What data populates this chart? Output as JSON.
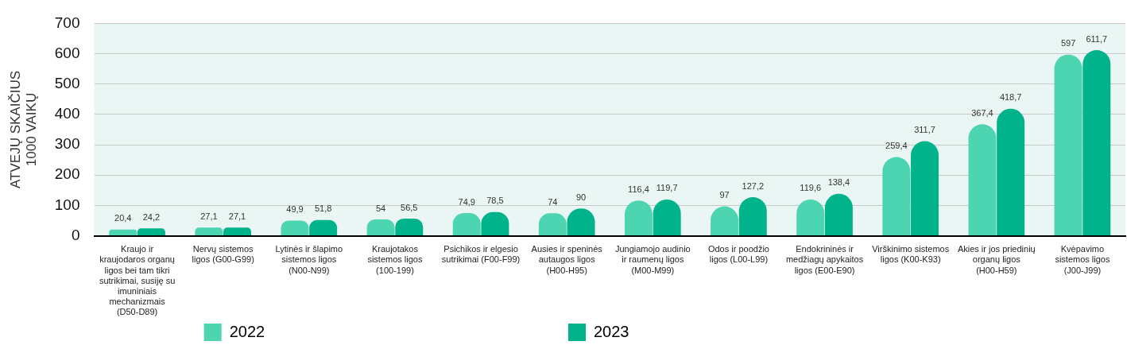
{
  "chart_data": {
    "type": "bar",
    "ylabel": "ATVEJŲ SKAIČIUS 1000 VAIKŲ",
    "categories": [
      "Kraujo ir kraujodaros organų ligos bei tam tikri sutrikimai, susiję su imuniniais mechanizmais (D50-D89)",
      "Nervų sistemos ligos (G00-G99)",
      "Lytinės ir šlapimo sistemos ligos (N00-N99)",
      "Kraujotakos sistemos ligos (100-199)",
      "Psichikos ir elgesio sutrikimai (F00-F99)",
      "Ausies ir speninės autaugos ligos (H00-H95)",
      "Jungiamojo audinio ir raumenų ligos (M00-M99)",
      "Odos ir poodžio ligos (L00-L99)",
      "Endokrininės ir medžiagų apykaitos ligos (E00-E90)",
      "Virškinimo sistemos ligos (K00-K93)",
      "Akies ir jos priedinių organų ligos (H00-H59)",
      "Kvėpavimo sistemos ligos (J00-J99)"
    ],
    "series": [
      {
        "name": "2022",
        "color": "#4dd4b0",
        "values": [
          20.4,
          27.1,
          49.9,
          54,
          74.9,
          74,
          116.4,
          97,
          119.6,
          259.4,
          367.4,
          597
        ],
        "value_labels": [
          "20,4",
          "27,1",
          "49,9",
          "54",
          "74,9",
          "74",
          "116,4",
          "97",
          "119,6",
          "259,4",
          "367,4",
          "597"
        ]
      },
      {
        "name": "2023",
        "color": "#00b38a",
        "values": [
          24.2,
          27.1,
          51.8,
          56.5,
          78.5,
          90,
          119.7,
          127.2,
          138.4,
          311.7,
          418.7,
          611.7
        ],
        "value_labels": [
          "24,2",
          "27,1",
          "51,8",
          "56,5",
          "78,5",
          "90",
          "119,7",
          "127,2",
          "138,4",
          "311,7",
          "418,7",
          "611,7"
        ]
      }
    ],
    "ylim": [
      0,
      700
    ],
    "yticks": [
      0,
      100,
      200,
      300,
      400,
      500,
      600,
      700
    ],
    "grid": "y",
    "legend": "bottom"
  }
}
